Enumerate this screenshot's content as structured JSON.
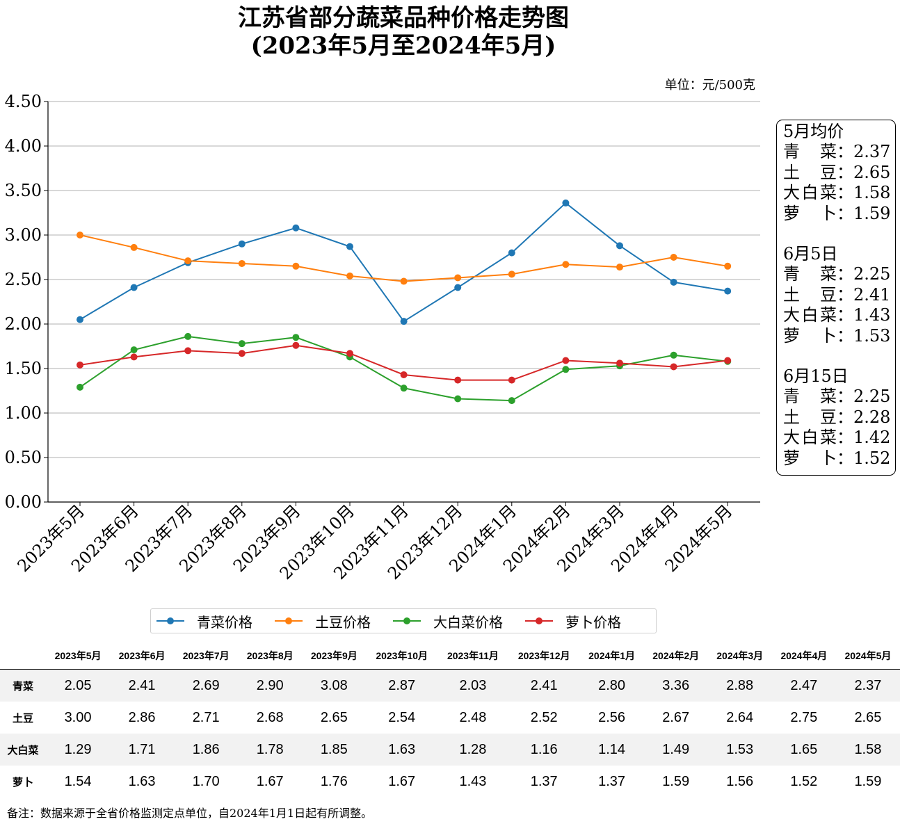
{
  "title_line1": "江苏省部分蔬菜品种价格走势图",
  "title_line2": "(2023年5月至2024年5月)",
  "unit_label": "单位：元/500克",
  "chart_data": {
    "type": "line",
    "categories": [
      "2023年5月",
      "2023年6月",
      "2023年7月",
      "2023年8月",
      "2023年9月",
      "2023年10月",
      "2023年11月",
      "2023年12月",
      "2024年1月",
      "2024年2月",
      "2024年3月",
      "2024年4月",
      "2024年5月"
    ],
    "series": [
      {
        "name": "青菜价格",
        "color": "#1f77b4",
        "values": [
          2.05,
          2.41,
          2.69,
          2.9,
          3.08,
          2.87,
          2.03,
          2.41,
          2.8,
          3.36,
          2.88,
          2.47,
          2.37
        ]
      },
      {
        "name": "土豆价格",
        "color": "#ff7f0e",
        "values": [
          3.0,
          2.86,
          2.71,
          2.68,
          2.65,
          2.54,
          2.48,
          2.52,
          2.56,
          2.67,
          2.64,
          2.75,
          2.65
        ]
      },
      {
        "name": "大白菜价格",
        "color": "#2ca02c",
        "values": [
          1.29,
          1.71,
          1.86,
          1.78,
          1.85,
          1.63,
          1.28,
          1.16,
          1.14,
          1.49,
          1.53,
          1.65,
          1.58
        ]
      },
      {
        "name": "萝卜价格",
        "color": "#d62728",
        "values": [
          1.54,
          1.63,
          1.7,
          1.67,
          1.76,
          1.67,
          1.43,
          1.37,
          1.37,
          1.59,
          1.56,
          1.52,
          1.59
        ]
      }
    ],
    "ylim": [
      0,
      4.5
    ],
    "yticks": [
      "0.00",
      "0.50",
      "1.00",
      "1.50",
      "2.00",
      "2.50",
      "3.00",
      "3.50",
      "4.00",
      "4.50"
    ],
    "grid": "horizontal",
    "legend": "bottom"
  },
  "infobox": [
    {
      "title": "5月均价",
      "rows": [
        {
          "name": "青菜",
          "value": "2.37"
        },
        {
          "name": "土豆",
          "value": "2.65"
        },
        {
          "name": "大白菜",
          "value": "1.58"
        },
        {
          "name": "萝卜",
          "value": "1.59"
        }
      ]
    },
    {
      "title": "6月5日",
      "rows": [
        {
          "name": "青菜",
          "value": "2.25"
        },
        {
          "name": "土豆",
          "value": "2.41"
        },
        {
          "name": "大白菜",
          "value": "1.43"
        },
        {
          "name": "萝卜",
          "value": "1.53"
        }
      ]
    },
    {
      "title": "6月15日",
      "rows": [
        {
          "name": "青菜",
          "value": "2.25"
        },
        {
          "name": "土豆",
          "value": "2.28"
        },
        {
          "name": "大白菜",
          "value": "1.42"
        },
        {
          "name": "萝卜",
          "value": "1.52"
        }
      ]
    }
  ],
  "table": {
    "headers": [
      "2023年5月",
      "2023年6月",
      "2023年7月",
      "2023年8月",
      "2023年9月",
      "2023年10月",
      "2023年11月",
      "2023年12月",
      "2024年1月",
      "2024年2月",
      "2024年3月",
      "2024年4月",
      "2024年5月"
    ],
    "rows": [
      {
        "label": "青菜",
        "values": [
          "2.05",
          "2.41",
          "2.69",
          "2.90",
          "3.08",
          "2.87",
          "2.03",
          "2.41",
          "2.80",
          "3.36",
          "2.88",
          "2.47",
          "2.37"
        ]
      },
      {
        "label": "土豆",
        "values": [
          "3.00",
          "2.86",
          "2.71",
          "2.68",
          "2.65",
          "2.54",
          "2.48",
          "2.52",
          "2.56",
          "2.67",
          "2.64",
          "2.75",
          "2.65"
        ]
      },
      {
        "label": "大白菜",
        "values": [
          "1.29",
          "1.71",
          "1.86",
          "1.78",
          "1.85",
          "1.63",
          "1.28",
          "1.16",
          "1.14",
          "1.49",
          "1.53",
          "1.65",
          "1.58"
        ]
      },
      {
        "label": "萝卜",
        "values": [
          "1.54",
          "1.63",
          "1.70",
          "1.67",
          "1.76",
          "1.67",
          "1.43",
          "1.37",
          "1.37",
          "1.59",
          "1.56",
          "1.52",
          "1.59"
        ]
      }
    ]
  },
  "note": "备注：数据来源于全省价格监测定点单位，自2024年1月1日起有所调整。"
}
